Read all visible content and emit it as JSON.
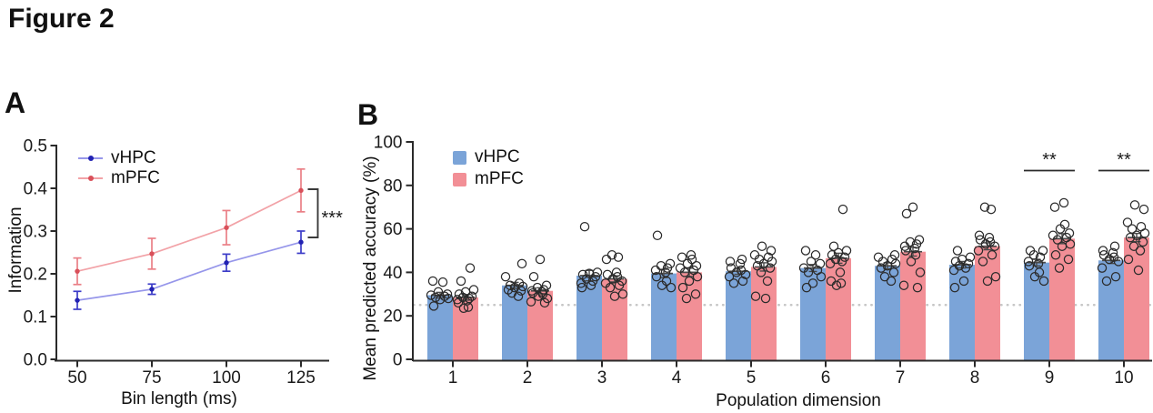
{
  "figure": {
    "title": "Figure 2"
  },
  "panels": {
    "a_label": "A",
    "b_label": "B"
  },
  "chart_data": [
    {
      "type": "line",
      "panel": "A",
      "title": "",
      "xlabel": "Bin length (ms)",
      "ylabel": "Information",
      "x": [
        50,
        75,
        100,
        125
      ],
      "xtick_labels": [
        "50",
        "75",
        "100",
        "125"
      ],
      "ytick_labels": [
        "0.0",
        "0.1",
        "0.2",
        "0.3",
        "0.4",
        "0.5"
      ],
      "ylim": [
        0,
        0.5
      ],
      "xlim": [
        42,
        134
      ],
      "grid": false,
      "legend_position": "top-left-inside",
      "series": [
        {
          "name": "vHPC",
          "line_color": "#9696ea",
          "marker_color": "#2222b2",
          "error_color": "#3c3cc8",
          "values": [
            0.138,
            0.164,
            0.226,
            0.274
          ],
          "sem": [
            0.021,
            0.012,
            0.02,
            0.026
          ]
        },
        {
          "name": "mPFC",
          "line_color": "#f2a2a7",
          "marker_color": "#d9505a",
          "error_color": "#ea7f86",
          "values": [
            0.206,
            0.247,
            0.308,
            0.395
          ],
          "sem": [
            0.031,
            0.036,
            0.04,
            0.05
          ]
        }
      ],
      "significance": {
        "label": "***",
        "comparison": "vHPC vs mPFC at 125 ms"
      }
    },
    {
      "type": "bar",
      "panel": "B",
      "title": "",
      "xlabel": "Population dimension",
      "ylabel": "Mean predicted accuracy (%)",
      "categories": [
        "1",
        "2",
        "3",
        "4",
        "5",
        "6",
        "7",
        "8",
        "9",
        "10"
      ],
      "ytick_labels": [
        "0",
        "20",
        "40",
        "60",
        "80",
        "100"
      ],
      "ylim": [
        0,
        100
      ],
      "grid": false,
      "chance_line": 25,
      "chance_line_color": "#c6c6c6",
      "legend_position": "top-left-inside",
      "series": [
        {
          "name": "vHPC",
          "color": "#7ba4d8",
          "means": [
            29.5,
            34,
            38.5,
            39.5,
            40.5,
            42,
            43,
            43.5,
            44.5,
            45.5
          ],
          "sem": [
            1.3,
            1.4,
            2.4,
            1.9,
            1.4,
            1.6,
            1.4,
            1.5,
            1.5,
            1.4
          ],
          "points": [
            [
              36,
              35.5,
              31,
              30,
              29.5,
              29,
              28.5,
              28,
              27.5,
              24.5
            ],
            [
              44,
              38,
              35,
              34,
              33.5,
              33,
              32,
              31.5,
              30.5,
              29
            ],
            [
              61,
              40,
              39.5,
              39,
              38,
              37,
              36,
              35,
              34,
              33
            ],
            [
              57,
              44,
              43,
              42,
              41,
              40,
              38,
              36,
              34,
              33
            ],
            [
              46,
              45,
              44,
              42,
              41,
              40,
              39,
              38,
              36,
              35
            ],
            [
              50,
              48,
              45,
              44,
              42,
              41,
              40,
              38,
              35,
              33
            ],
            [
              48,
              47,
              46,
              45,
              44,
              43,
              42,
              40,
              38,
              36
            ],
            [
              50,
              47,
              46,
              45,
              44,
              43,
              42,
              41,
              36,
              33
            ],
            [
              50,
              50,
              48,
              47,
              45,
              44,
              43,
              40,
              38,
              36
            ],
            [
              52,
              50,
              49,
              48,
              47,
              46,
              45,
              42,
              38,
              36
            ]
          ]
        },
        {
          "name": "mPFC",
          "color": "#f28f96",
          "means": [
            28.5,
            31.5,
            37,
            40,
            42.5,
            46.5,
            49.5,
            52,
            55.5,
            56
          ],
          "sem": [
            1.3,
            1.4,
            1.4,
            1.9,
            1.9,
            2.3,
            2.0,
            1.6,
            2.3,
            1.9
          ],
          "points": [
            [
              42,
              36,
              32,
              31,
              30,
              29,
              28.5,
              28,
              27.5,
              27,
              26,
              24,
              23.5
            ],
            [
              46,
              38,
              34,
              33,
              32,
              31.5,
              31,
              30.5,
              30,
              29,
              28,
              26.5,
              26
            ],
            [
              48,
              47,
              46,
              40,
              39,
              38,
              37,
              36,
              35,
              34,
              33,
              30,
              29
            ],
            [
              48,
              47,
              46,
              44,
              43,
              42,
              41,
              40,
              38,
              36,
              33,
              30,
              28
            ],
            [
              52,
              50,
              48,
              47,
              46,
              45,
              44,
              43,
              42,
              40,
              36,
              29,
              28
            ],
            [
              69,
              52,
              50,
              49,
              48,
              47,
              46,
              45,
              44,
              40,
              36,
              35,
              34
            ],
            [
              70,
              67,
              55,
              54,
              53,
              52,
              51,
              50,
              48,
              45,
              40,
              34,
              33
            ],
            [
              70,
              69,
              57,
              56,
              55,
              54,
              53,
              52,
              50,
              48,
              45,
              38,
              36
            ],
            [
              72,
              70,
              62,
              60,
              58,
              57,
              56,
              55,
              53,
              52,
              48,
              46,
              42
            ],
            [
              71,
              69,
              63,
              61,
              60,
              58,
              57,
              56,
              54,
              52,
              50,
              46,
              41
            ]
          ]
        }
      ],
      "significance": [
        {
          "label": "**",
          "category": "9"
        },
        {
          "label": "**",
          "category": "10"
        }
      ]
    }
  ]
}
